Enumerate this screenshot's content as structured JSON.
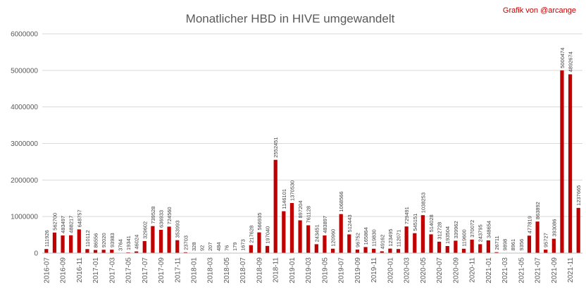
{
  "chart_data": {
    "type": "bar",
    "title": "Monatlicher HBD in HIVE umgewandelt",
    "credit": "Grafik von @arcange",
    "xlabel": "",
    "ylabel": "",
    "ylim": [
      0,
      6000000
    ],
    "yticks": [
      "0",
      "1000000",
      "2000000",
      "3000000",
      "4000000",
      "5000000",
      "6000000"
    ],
    "grid": true,
    "legend": "none",
    "bar_color": "#c00000",
    "categories": [
      "2016-07",
      "2016-08",
      "2016-09",
      "2016-10",
      "2016-11",
      "2016-12",
      "2017-01",
      "2017-02",
      "2017-03",
      "2017-04",
      "2017-05",
      "2017-06",
      "2017-07",
      "2017-08",
      "2017-09",
      "2017-10",
      "2017-11",
      "2017-12",
      "2018-01",
      "2018-02",
      "2018-03",
      "2018-04",
      "2018-05",
      "2018-06",
      "2018-07",
      "2018-08",
      "2018-09",
      "2018-10",
      "2018-11",
      "2018-12",
      "2019-01",
      "2019-02",
      "2019-03",
      "2019-04",
      "2019-05",
      "2019-06",
      "2019-07",
      "2019-08",
      "2019-09",
      "2019-10",
      "2019-11",
      "2019-12",
      "2020-01",
      "2020-02",
      "2020-03",
      "2020-04",
      "2020-05",
      "2020-06",
      "2020-07",
      "2020-08",
      "2020-09",
      "2020-10",
      "2020-11",
      "2020-12",
      "2021-01",
      "2021-02",
      "2021-03",
      "2021-04",
      "2021-05",
      "2021-06",
      "2021-07",
      "2021-08",
      "2021-09",
      "2021-10",
      "2021-11",
      "2021-12"
    ],
    "xtick_labels": [
      "2016-07",
      "2016-09",
      "2016-11",
      "2017-01",
      "2017-03",
      "2017-05",
      "2017-07",
      "2017-09",
      "2017-11",
      "2018-01",
      "2018-03",
      "2018-05",
      "2018-07",
      "2018-09",
      "2018-11",
      "2019-01",
      "2019-03",
      "2019-05",
      "2019-07",
      "2019-09",
      "2019-11",
      "2020-01",
      "2020-03",
      "2020-05",
      "2020-07",
      "2020-09",
      "2020-11",
      "2021-01",
      "2021-03",
      "2021-05",
      "2021-07",
      "2021-09",
      "2021-11"
    ],
    "values": [
      111926,
      562700,
      483497,
      488217,
      648757,
      110112,
      86556,
      92020,
      93983,
      3764,
      19341,
      46024,
      329602,
      739528,
      636933,
      724560,
      353993,
      23703,
      328,
      92,
      207,
      484,
      76,
      179,
      1673,
      217628,
      566935,
      197040,
      2552451,
      1146101,
      1370530,
      897204,
      761128,
      243451,
      483897,
      120960,
      1068566,
      512443,
      96752,
      165864,
      119830,
      49162,
      123495,
      112071,
      729491,
      545151,
      1038253,
      514028,
      312728,
      193504,
      339962,
      119600,
      370072,
      243795,
      348654,
      26711,
      9898,
      8961,
      9356,
      477819,
      863892,
      95727,
      393086,
      5000474,
      4892674,
      1237665
    ],
    "data_labels": [
      "111926",
      "562700",
      "483497",
      "488217",
      "648757",
      "110112",
      "86556",
      "92020",
      "93983",
      "3764",
      "19341",
      "46024",
      "329602",
      "739528",
      "636933",
      "724560",
      "353993",
      "23703",
      "328",
      "92",
      "207",
      "484",
      "76",
      "179",
      "1673",
      "217628",
      "566935",
      "197040",
      "2552451",
      "1146101",
      "1370530",
      "897204",
      "761128",
      "243451",
      "483897",
      "120960",
      "1068566",
      "512443",
      "96752",
      "165864",
      "119830",
      "49162",
      "123495",
      "112071",
      "729491",
      "545151",
      "1038253",
      "514028",
      "312728",
      "193504",
      "339962",
      "119600",
      "370072",
      "243795",
      "348654",
      "26711",
      "9898",
      "8961",
      "9356",
      "477819",
      "863892",
      "95727",
      "393086",
      "5000474",
      "4892674",
      "1237665"
    ]
  }
}
